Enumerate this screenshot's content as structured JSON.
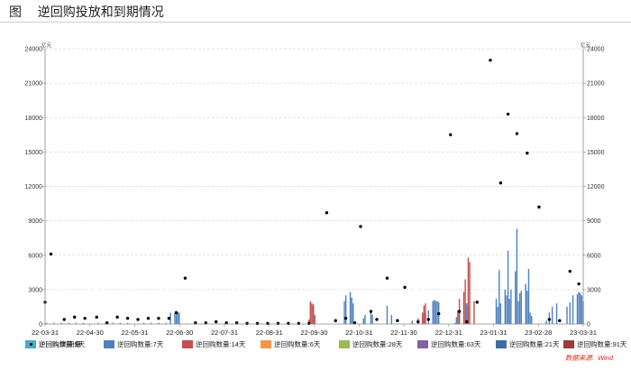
{
  "title": "图    逆回购投放和到期情况",
  "source": "数据来源:  Wind",
  "chart_data": {
    "type": "bar",
    "unit_left": "亿元",
    "unit_right": "亿元",
    "ylim": [
      0,
      24000
    ],
    "yticks": [
      0,
      3000,
      6000,
      9000,
      12000,
      15000,
      18000,
      21000,
      24000
    ],
    "xlim": [
      "2022-03-31",
      "2023-03-31"
    ],
    "xtick_labels": [
      "22-03-31",
      "22-04-30",
      "22-05-31",
      "22-06-30",
      "22-07-31",
      "22-08-31",
      "22-09-30",
      "22-10-31",
      "22-11-30",
      "22-12-31",
      "23-01-31",
      "23-02-28",
      "23-03-31"
    ],
    "grid": "horizontal dashed",
    "legend_position": "bottom",
    "series": [
      {
        "name": "逆回购数量:5天",
        "color": "#4bacc6",
        "points": []
      },
      {
        "name": "逆回购数量:7天",
        "color": "#4f81bd",
        "points": [
          [
            "2022-04-01",
            100
          ],
          [
            "2022-04-06",
            100
          ],
          [
            "2022-04-11",
            100
          ],
          [
            "2022-04-16",
            100
          ],
          [
            "2022-04-21",
            100
          ],
          [
            "2022-04-26",
            100
          ],
          [
            "2022-05-06",
            100
          ],
          [
            "2022-05-11",
            100
          ],
          [
            "2022-05-16",
            100
          ],
          [
            "2022-05-21",
            100
          ],
          [
            "2022-05-26",
            100
          ],
          [
            "2022-06-06",
            100
          ],
          [
            "2022-06-11",
            100
          ],
          [
            "2022-06-16",
            100
          ],
          [
            "2022-06-21",
            100
          ],
          [
            "2022-06-24",
            1000
          ],
          [
            "2022-06-27",
            1000
          ],
          [
            "2022-06-28",
            1000
          ],
          [
            "2022-06-29",
            1000
          ],
          [
            "2022-06-30",
            1000
          ],
          [
            "2022-07-05",
            30
          ],
          [
            "2022-07-15",
            30
          ],
          [
            "2022-07-25",
            30
          ],
          [
            "2022-08-05",
            20
          ],
          [
            "2022-08-15",
            20
          ],
          [
            "2022-08-25",
            20
          ],
          [
            "2022-09-05",
            20
          ],
          [
            "2022-09-15",
            20
          ],
          [
            "2022-09-27",
            1800
          ],
          [
            "2022-09-28",
            1600
          ],
          [
            "2022-09-29",
            1500
          ],
          [
            "2022-10-20",
            2000
          ],
          [
            "2022-10-21",
            2500
          ],
          [
            "2022-10-24",
            2800
          ],
          [
            "2022-10-25",
            2300
          ],
          [
            "2022-10-26",
            1800
          ],
          [
            "2022-11-02",
            500
          ],
          [
            "2022-11-03",
            800
          ],
          [
            "2022-11-07",
            1200
          ],
          [
            "2022-11-08",
            800
          ],
          [
            "2022-11-18",
            1600
          ],
          [
            "2022-11-21",
            800
          ],
          [
            "2022-12-05",
            300
          ],
          [
            "2022-12-12",
            800
          ],
          [
            "2022-12-14",
            1000
          ],
          [
            "2022-12-16",
            1200
          ],
          [
            "2022-12-19",
            2000
          ],
          [
            "2022-12-20",
            2100
          ],
          [
            "2022-12-21",
            2000
          ],
          [
            "2022-12-22",
            2000
          ],
          [
            "2022-12-23",
            1900
          ],
          [
            "2023-01-03",
            100
          ],
          [
            "2023-01-04",
            600
          ],
          [
            "2023-01-05",
            1200
          ],
          [
            "2023-01-06",
            1200
          ],
          [
            "2023-01-10",
            1800
          ],
          [
            "2023-01-11",
            1800
          ],
          [
            "2023-01-12",
            1500
          ],
          [
            "2023-01-31",
            2200
          ],
          [
            "2023-02-01",
            1500
          ],
          [
            "2023-02-02",
            4700
          ],
          [
            "2023-02-03",
            1800
          ],
          [
            "2023-02-06",
            3000
          ],
          [
            "2023-02-07",
            2500
          ],
          [
            "2023-02-08",
            6400
          ],
          [
            "2023-02-09",
            2200
          ],
          [
            "2023-02-10",
            3000
          ],
          [
            "2023-02-13",
            4600
          ],
          [
            "2023-02-14",
            8300
          ],
          [
            "2023-02-15",
            2000
          ],
          [
            "2023-02-16",
            2700
          ],
          [
            "2023-02-17",
            2900
          ],
          [
            "2023-02-20",
            3500
          ],
          [
            "2023-02-21",
            2900
          ],
          [
            "2023-02-22",
            4800
          ],
          [
            "2023-02-23",
            1000
          ],
          [
            "2023-02-24",
            700
          ],
          [
            "2023-03-06",
            300
          ],
          [
            "2023-03-08",
            1000
          ],
          [
            "2023-03-10",
            1500
          ],
          [
            "2023-03-13",
            1800
          ],
          [
            "2023-03-20",
            1500
          ],
          [
            "2023-03-22",
            1900
          ],
          [
            "2023-03-24",
            2500
          ],
          [
            "2023-03-27",
            2600
          ],
          [
            "2023-03-28",
            2800
          ],
          [
            "2023-03-29",
            2700
          ],
          [
            "2023-03-30",
            2500
          ],
          [
            "2023-03-31",
            2000
          ]
        ]
      },
      {
        "name": "逆回购数量:14天",
        "color": "#c0504d",
        "points": [
          [
            "2022-09-26",
            400
          ],
          [
            "2022-09-27",
            2000
          ],
          [
            "2022-09-28",
            1800
          ],
          [
            "2022-09-29",
            1700
          ],
          [
            "2022-09-30",
            800
          ],
          [
            "2022-12-09",
            500
          ],
          [
            "2022-12-12",
            1000
          ],
          [
            "2022-12-13",
            1600
          ],
          [
            "2022-12-14",
            1800
          ],
          [
            "2023-01-05",
            1200
          ],
          [
            "2023-01-06",
            2200
          ],
          [
            "2023-01-09",
            2800
          ],
          [
            "2023-01-10",
            3900
          ],
          [
            "2023-01-12",
            5800
          ],
          [
            "2023-01-13",
            5400
          ],
          [
            "2023-01-16",
            2000
          ]
        ]
      },
      {
        "name": "逆回购数量:6天",
        "color": "#f79646",
        "points": []
      },
      {
        "name": "逆回购数量:28天",
        "color": "#9bbb59",
        "points": []
      },
      {
        "name": "逆回购数量:63天",
        "color": "#8064a2",
        "points": []
      },
      {
        "name": "逆回购数量:21天",
        "color": "#3e6e9e",
        "points": []
      },
      {
        "name": "逆回购数量:91天",
        "color": "#9b3b3b",
        "points": []
      },
      {
        "name": "逆回购:到期量",
        "color": "#000000",
        "type": "scatter",
        "points": [
          [
            "2022-03-31",
            1900
          ],
          [
            "2022-04-04",
            6100
          ],
          [
            "2022-04-13",
            400
          ],
          [
            "2022-04-20",
            600
          ],
          [
            "2022-04-27",
            500
          ],
          [
            "2022-05-05",
            600
          ],
          [
            "2022-05-12",
            100
          ],
          [
            "2022-05-19",
            600
          ],
          [
            "2022-05-26",
            500
          ],
          [
            "2022-06-02",
            400
          ],
          [
            "2022-06-09",
            500
          ],
          [
            "2022-06-16",
            500
          ],
          [
            "2022-06-23",
            500
          ],
          [
            "2022-06-28",
            1000
          ],
          [
            "2022-07-04",
            4000
          ],
          [
            "2022-07-11",
            100
          ],
          [
            "2022-07-18",
            100
          ],
          [
            "2022-07-25",
            200
          ],
          [
            "2022-08-01",
            100
          ],
          [
            "2022-08-08",
            100
          ],
          [
            "2022-08-15",
            50
          ],
          [
            "2022-08-22",
            50
          ],
          [
            "2022-08-29",
            50
          ],
          [
            "2022-09-05",
            50
          ],
          [
            "2022-09-12",
            50
          ],
          [
            "2022-09-19",
            50
          ],
          [
            "2022-09-26",
            50
          ],
          [
            "2022-10-08",
            9700
          ],
          [
            "2022-10-14",
            300
          ],
          [
            "2022-10-21",
            500
          ],
          [
            "2022-10-27",
            100
          ],
          [
            "2022-10-31",
            8500
          ],
          [
            "2022-11-07",
            1100
          ],
          [
            "2022-11-11",
            400
          ],
          [
            "2022-11-18",
            4000
          ],
          [
            "2022-11-25",
            300
          ],
          [
            "2022-11-30",
            3200
          ],
          [
            "2022-12-09",
            200
          ],
          [
            "2022-12-16",
            400
          ],
          [
            "2022-12-23",
            900
          ],
          [
            "2022-12-31",
            16500
          ],
          [
            "2023-01-06",
            1100
          ],
          [
            "2023-01-11",
            200
          ],
          [
            "2023-01-18",
            1900
          ],
          [
            "2023-01-27",
            23000
          ],
          [
            "2023-02-03",
            12300
          ],
          [
            "2023-02-08",
            18300
          ],
          [
            "2023-02-14",
            16600
          ],
          [
            "2023-02-21",
            14900
          ],
          [
            "2023-03-01",
            10200
          ],
          [
            "2023-03-08",
            400
          ],
          [
            "2023-03-15",
            300
          ],
          [
            "2023-03-22",
            4600
          ],
          [
            "2023-03-28",
            3500
          ]
        ]
      }
    ]
  }
}
